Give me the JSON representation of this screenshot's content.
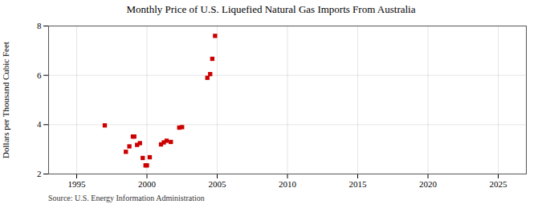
{
  "chart_data": {
    "type": "scatter",
    "title": "Monthly Price of U.S. Liquefied Natural Gas Imports From Australia",
    "ylabel": "Dollars per Thousand Cubic Feet",
    "source": "Source: U.S. Energy Information Administration",
    "x": [
      1997.0,
      1998.5,
      1998.75,
      1999.0,
      1999.1,
      1999.3,
      1999.5,
      1999.7,
      1999.9,
      2000.0,
      2000.2,
      2001.0,
      2001.2,
      2001.4,
      2001.7,
      2002.3,
      2002.5,
      2004.3,
      2004.5,
      2004.65,
      2004.85
    ],
    "values": [
      3.97,
      2.9,
      3.12,
      3.52,
      3.52,
      3.18,
      3.25,
      2.65,
      2.35,
      2.35,
      2.68,
      3.2,
      3.28,
      3.35,
      3.3,
      3.88,
      3.9,
      5.9,
      6.05,
      6.67,
      7.6
    ],
    "color": "#cc0000",
    "marker": "square",
    "xlim": [
      1993,
      2027
    ],
    "ylim": [
      2,
      8
    ],
    "xticks": [
      1995,
      2000,
      2005,
      2010,
      2015,
      2020,
      2025
    ],
    "yticks": [
      2,
      4,
      6,
      8
    ],
    "grid": true
  }
}
